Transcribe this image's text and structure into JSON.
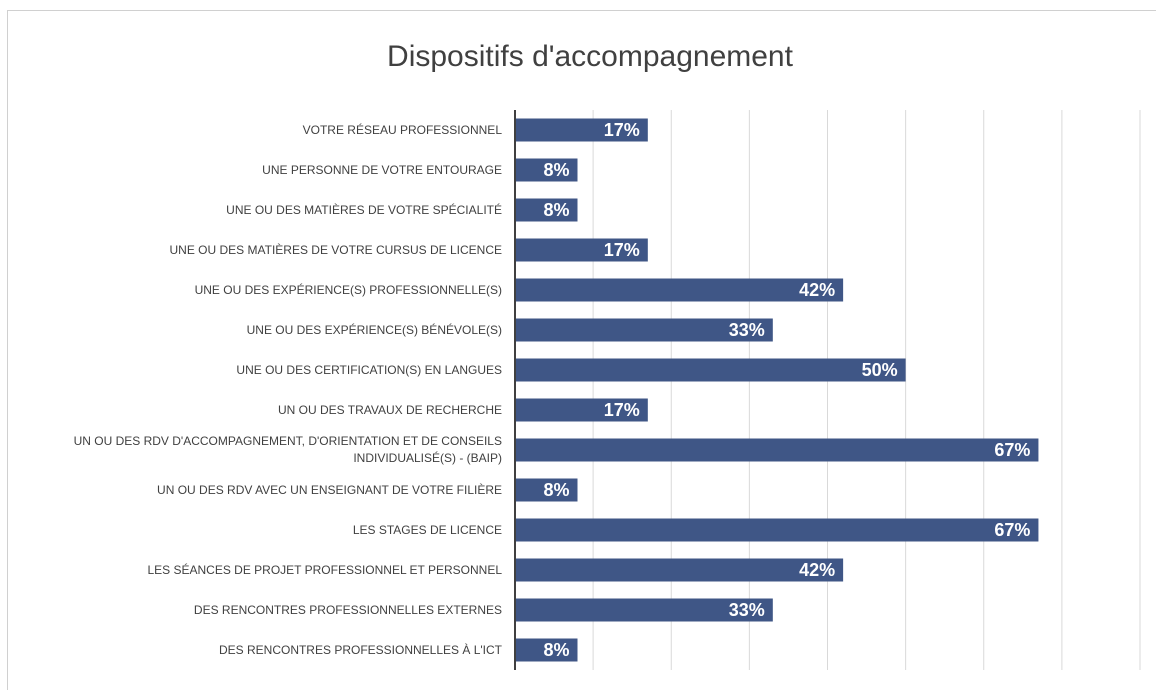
{
  "chart_data": {
    "type": "bar",
    "orientation": "horizontal",
    "title": "Dispositifs d'accompagnement",
    "categories": [
      "VOTRE RÉSEAU PROFESSIONNEL",
      "UNE PERSONNE DE VOTRE ENTOURAGE",
      "UNE OU DES MATIÈRES DE VOTRE SPÉCIALITÉ",
      "UNE OU DES MATIÈRES DE VOTRE CURSUS DE LICENCE",
      "UNE OU DES EXPÉRIENCE(S) PROFESSIONNELLE(S)",
      "UNE OU DES EXPÉRIENCE(S) BÉNÉVOLE(S)",
      "UNE OU DES CERTIFICATION(S) EN LANGUES",
      "UN OU DES TRAVAUX DE RECHERCHE",
      "UN OU DES RDV D'ACCOMPAGNEMENT, D'ORIENTATION ET DE CONSEILS INDIVIDUALISÉ(S) - (BAIP)",
      "UN OU DES RDV AVEC UN ENSEIGNANT DE VOTRE FILIÈRE",
      "LES STAGES DE LICENCE",
      "LES SÉANCES DE PROJET PROFESSIONNEL ET PERSONNEL",
      "DES RENCONTRES PROFESSIONNELLES EXTERNES",
      "DES RENCONTRES PROFESSIONNELLES À L'ICT"
    ],
    "values": [
      17,
      8,
      8,
      17,
      42,
      33,
      50,
      17,
      67,
      8,
      67,
      42,
      33,
      8
    ],
    "value_labels": [
      "17%",
      "8%",
      "8%",
      "17%",
      "42%",
      "33%",
      "50%",
      "17%",
      "67%",
      "8%",
      "67%",
      "42%",
      "33%",
      "8%"
    ],
    "color": "#3f5686",
    "xlim": [
      0,
      80
    ],
    "xticks": [
      0,
      10,
      20,
      30,
      40,
      50,
      60,
      70,
      80
    ],
    "grid": true
  }
}
